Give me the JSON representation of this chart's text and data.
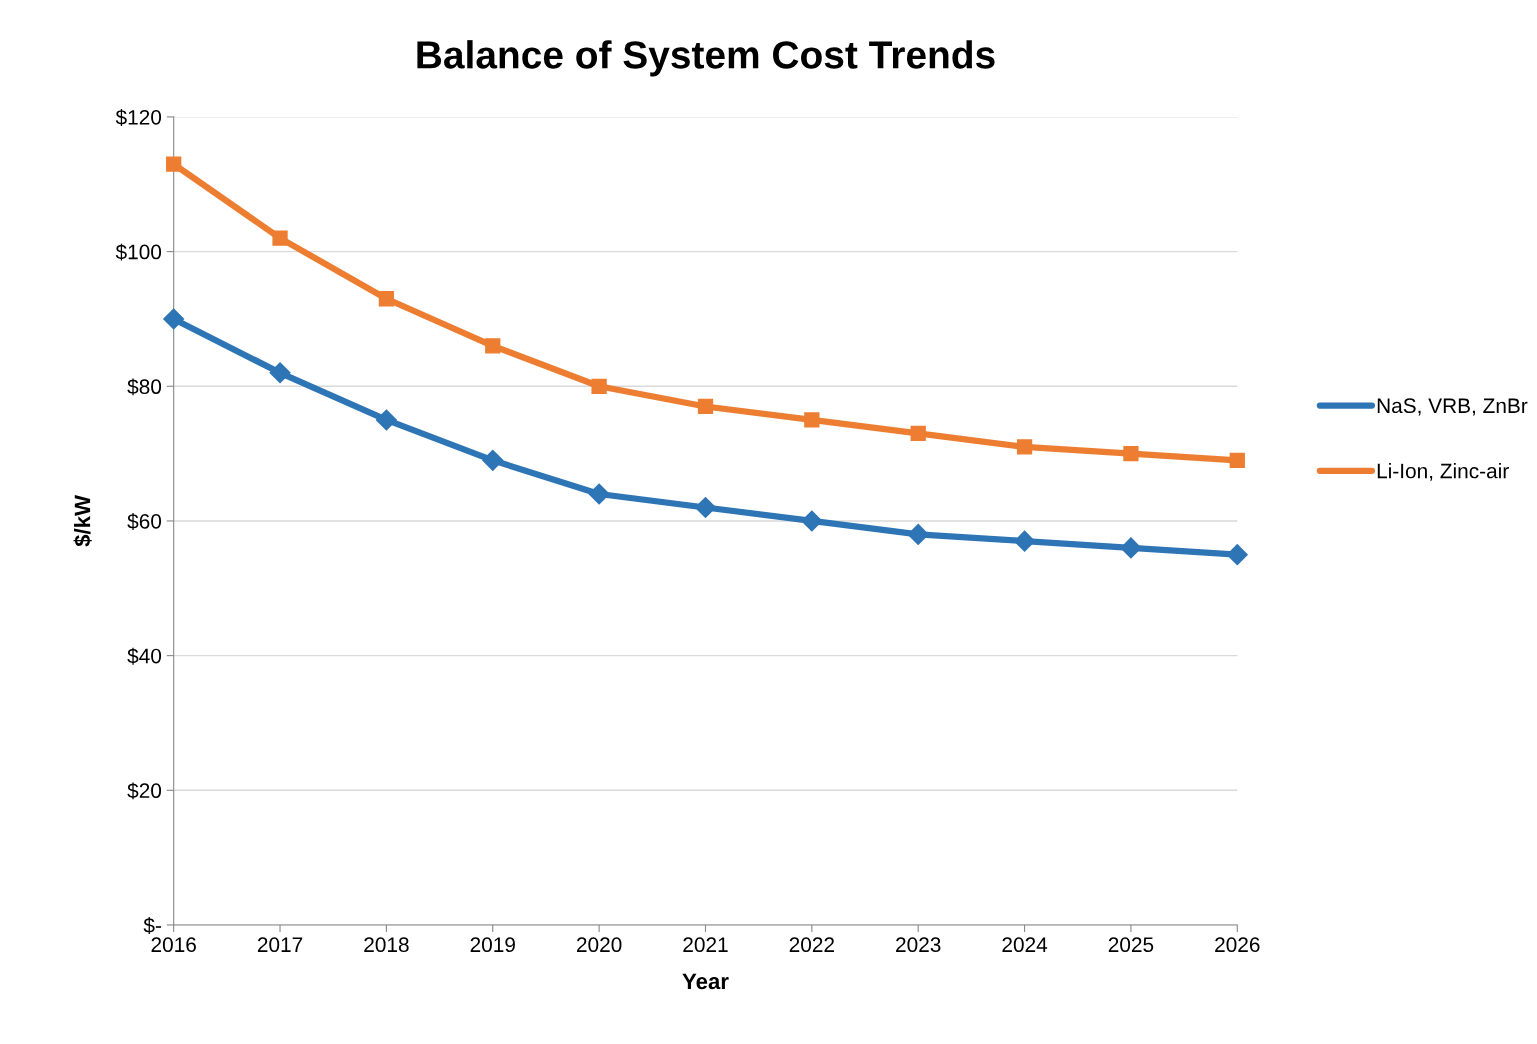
{
  "chart_data": {
    "type": "line",
    "title": "Balance of System Cost Trends",
    "xlabel": "Year",
    "ylabel": "$/kW",
    "x": [
      2016,
      2017,
      2018,
      2019,
      2020,
      2021,
      2022,
      2023,
      2024,
      2025,
      2026
    ],
    "xlim": [
      2016,
      2026
    ],
    "xticks": [
      2016,
      2017,
      2018,
      2019,
      2020,
      2021,
      2022,
      2023,
      2024,
      2025,
      2026
    ],
    "ylim": [
      0,
      120
    ],
    "yticks": [
      {
        "value": 0,
        "label": "$-"
      },
      {
        "value": 20,
        "label": "$20"
      },
      {
        "value": 40,
        "label": "$40"
      },
      {
        "value": 60,
        "label": "$60"
      },
      {
        "value": 80,
        "label": "$80"
      },
      {
        "value": 100,
        "label": "$100"
      },
      {
        "value": 120,
        "label": "$120"
      }
    ],
    "grid": "y",
    "legend": "right",
    "line_style": "solid",
    "series": [
      {
        "name": "NaS, VRB, ZnBr",
        "color": "#2e75b6",
        "marker": "diamond",
        "values": [
          90,
          82,
          75,
          69,
          64,
          62,
          60,
          58,
          57,
          56,
          55
        ]
      },
      {
        "name": "Li-Ion, Zinc-air",
        "color": "#ed7d31",
        "marker": "square",
        "values": [
          113,
          102,
          93,
          86,
          80,
          77,
          75,
          73,
          71,
          70,
          69
        ]
      }
    ]
  }
}
